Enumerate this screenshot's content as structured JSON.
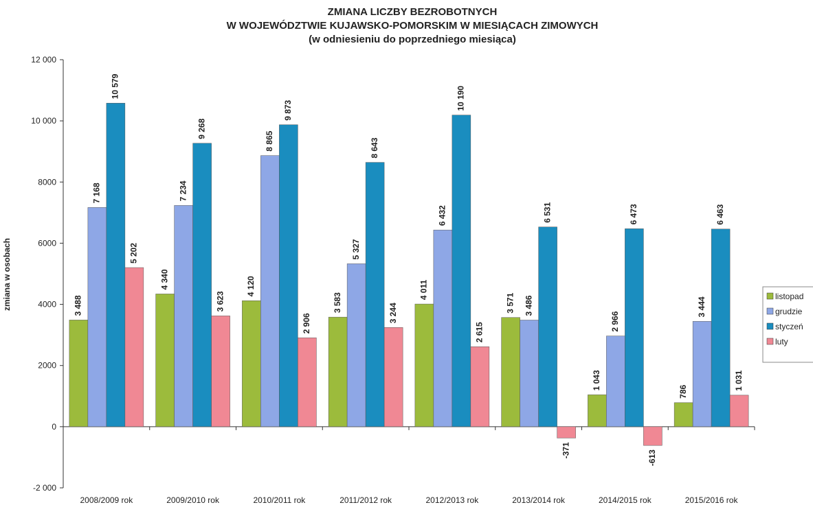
{
  "chart_data": {
    "type": "bar",
    "title": [
      "ZMIANA LICZBY BEZROBOTNYCH",
      "W WOJEWÓDZTWIE KUJAWSKO-POMORSKIM W MIESIĄCACH ZIMOWYCH",
      "(w odniesieniu do poprzedniego miesiąca)"
    ],
    "y_label": "zmiana w osobach",
    "categories": [
      "2008/2009 rok",
      "2009/2010 rok",
      "2010/2011 rok",
      "2011/2012 rok",
      "2012/2013 rok",
      "2013/2014 rok",
      "2014/2015 rok",
      "2015/2016 rok"
    ],
    "series": [
      {
        "name": "listopad",
        "color": "#9cbb3c",
        "values": [
          3488,
          4340,
          4120,
          3583,
          4011,
          3571,
          1043,
          786
        ],
        "value_labels": [
          "3 488",
          "4 340",
          "4 120",
          "3 583",
          "4 011",
          "3 571",
          "1 043",
          "786"
        ]
      },
      {
        "name": "grudzie",
        "color": "#8ea7e6",
        "values": [
          7168,
          7234,
          8865,
          5327,
          6432,
          3486,
          2966,
          3444
        ],
        "value_labels": [
          "7 168",
          "7 234",
          "8 865",
          "5 327",
          "6 432",
          "3 486",
          "2 966",
          "3 444"
        ]
      },
      {
        "name": "styczeń",
        "color": "#1a8dbf",
        "values": [
          10579,
          9268,
          9873,
          8643,
          10190,
          6531,
          6473,
          6463
        ],
        "value_labels": [
          "10 579",
          "9 268",
          "9 873",
          "8 643",
          "10 190",
          "6 531",
          "6 473",
          "6 463"
        ]
      },
      {
        "name": "luty",
        "color": "#f08894",
        "values": [
          5202,
          3623,
          2906,
          3244,
          2615,
          -371,
          -613,
          1031
        ],
        "value_labels": [
          "5 202",
          "3 623",
          "2 906",
          "3 244",
          "2 615",
          "-371",
          "-613",
          "1 031"
        ]
      }
    ],
    "ylim": [
      -2000,
      12000
    ],
    "yticks": [
      {
        "value": -2000,
        "label": "-2 000"
      },
      0,
      2000,
      4000,
      6000,
      8000,
      {
        "value": 10000,
        "label": "10 000"
      },
      {
        "value": 12000,
        "label": "12 000"
      }
    ],
    "legend": "right"
  }
}
